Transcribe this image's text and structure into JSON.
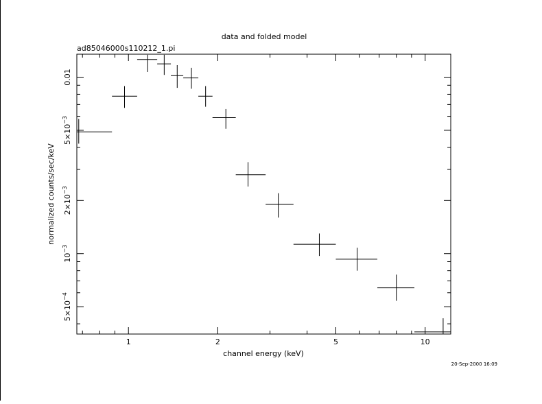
{
  "chart_data": {
    "type": "scatter",
    "title": "data and folded model",
    "subtitle": "ad85046000s110212_1.pi",
    "xlabel": "channel energy (keV)",
    "ylabel": "normalized counts/sec/keV",
    "timestamp": "20-Sep-2000 16:09",
    "xscale": "log",
    "yscale": "log",
    "xlim": [
      0.67,
      12.2
    ],
    "ylim": [
      0.00035,
      0.0135
    ],
    "x_major_ticks": [
      {
        "value": 1,
        "label": "1"
      },
      {
        "value": 2,
        "label": "2"
      },
      {
        "value": 5,
        "label": "5"
      },
      {
        "value": 10,
        "label": "10"
      }
    ],
    "y_major_ticks": [
      {
        "value": 0.0005,
        "base": "5×10",
        "exp": "−4"
      },
      {
        "value": 0.001,
        "base": "10",
        "exp": "−3"
      },
      {
        "value": 0.002,
        "base": "2×10",
        "exp": "−3"
      },
      {
        "value": 0.005,
        "base": "5×10",
        "exp": "−3"
      },
      {
        "value": 0.01,
        "base": "0.01",
        "exp": ""
      }
    ],
    "points": [
      {
        "x": 0.68,
        "xlo": 0.67,
        "xhi": 0.88,
        "y": 0.0049,
        "ylo": 0.0042,
        "yhi": 0.0058
      },
      {
        "x": 0.97,
        "xlo": 0.88,
        "xhi": 1.07,
        "y": 0.0078,
        "ylo": 0.0067,
        "yhi": 0.0089
      },
      {
        "x": 1.16,
        "xlo": 1.07,
        "xhi": 1.25,
        "y": 0.0126,
        "ylo": 0.0107,
        "yhi": 0.0134
      },
      {
        "x": 1.32,
        "xlo": 1.25,
        "xhi": 1.39,
        "y": 0.0119,
        "ylo": 0.0103,
        "yhi": 0.0134
      },
      {
        "x": 1.46,
        "xlo": 1.39,
        "xhi": 1.53,
        "y": 0.0102,
        "ylo": 0.0087,
        "yhi": 0.0117
      },
      {
        "x": 1.63,
        "xlo": 1.53,
        "xhi": 1.72,
        "y": 0.0099,
        "ylo": 0.0086,
        "yhi": 0.0113
      },
      {
        "x": 1.82,
        "xlo": 1.72,
        "xhi": 1.92,
        "y": 0.0078,
        "ylo": 0.0068,
        "yhi": 0.0089
      },
      {
        "x": 2.13,
        "xlo": 1.92,
        "xhi": 2.3,
        "y": 0.0059,
        "ylo": 0.0051,
        "yhi": 0.0066
      },
      {
        "x": 2.53,
        "xlo": 2.3,
        "xhi": 2.9,
        "y": 0.0028,
        "ylo": 0.0024,
        "yhi": 0.0033
      },
      {
        "x": 3.2,
        "xlo": 2.9,
        "xhi": 3.6,
        "y": 0.0019,
        "ylo": 0.0016,
        "yhi": 0.0022
      },
      {
        "x": 4.4,
        "xlo": 3.6,
        "xhi": 5.0,
        "y": 0.00113,
        "ylo": 0.00097,
        "yhi": 0.0013
      },
      {
        "x": 5.9,
        "xlo": 5.0,
        "xhi": 6.9,
        "y": 0.00093,
        "ylo": 0.0008,
        "yhi": 0.00108
      },
      {
        "x": 8.0,
        "xlo": 6.9,
        "xhi": 9.2,
        "y": 0.00064,
        "ylo": 0.00054,
        "yhi": 0.00076
      },
      {
        "x": 11.5,
        "xlo": 9.2,
        "xhi": 12.2,
        "y": 0.00036,
        "ylo": 0.00035,
        "yhi": 0.00043
      }
    ]
  }
}
